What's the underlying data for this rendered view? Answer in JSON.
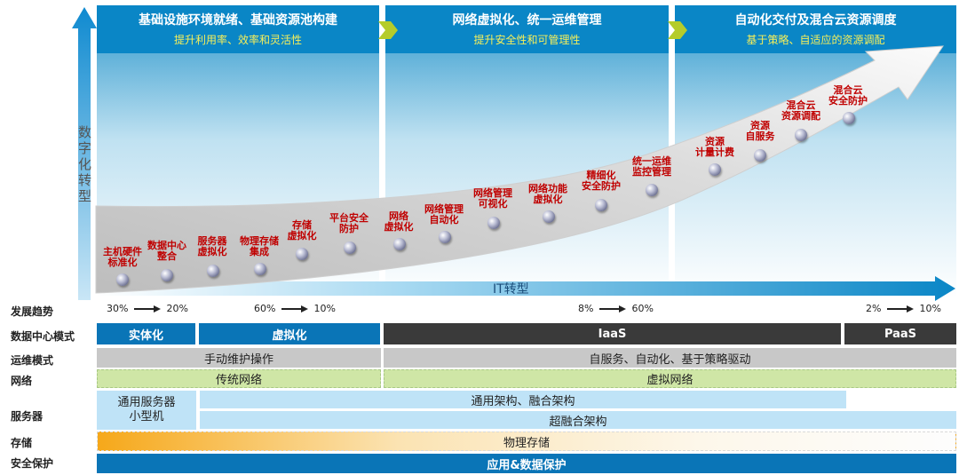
{
  "phases": [
    {
      "title": "基础设施环境就绪、基础资源池构建",
      "subtitle": "提升利用率、效率和灵活性"
    },
    {
      "title": "网络虚拟化、统一运维管理",
      "subtitle": "提升安全性和可管理性"
    },
    {
      "title": "自动化交付及混合云资源调度",
      "subtitle": "基于策略、自适应的资源调配"
    }
  ],
  "y_axis_label": [
    "数",
    "字",
    "化",
    "转",
    "型"
  ],
  "x_axis_label": "IT转型",
  "milestones": [
    "主机硬件\n标准化",
    "数据中心\n整合",
    "服务器\n虚拟化",
    "物理存储\n集成",
    "存储\n虚拟化",
    "平台安全\n防护",
    "网络\n虚拟化",
    "网络管理\n自动化",
    "网络管理\n可视化",
    "网络功能\n虚拟化",
    "精细化\n安全防护",
    "统一运维\n监控管理",
    "资源\n计量计费",
    "资源\n自服务",
    "混合云\n资源调配",
    "混合云\n安全防护"
  ],
  "row_labels": {
    "trend": "发展趋势",
    "dc_mode": "数据中心模式",
    "ops": "运维模式",
    "network": "网络",
    "server": "服务器",
    "storage": "存储",
    "security": "安全保护"
  },
  "trends": [
    {
      "from": "30%",
      "to": "20%"
    },
    {
      "from": "60%",
      "to": "10%"
    },
    {
      "from": "8%",
      "to": "60%"
    },
    {
      "from": "2%",
      "to": "10%"
    }
  ],
  "dc_modes": [
    "实体化",
    "虚拟化",
    "IaaS",
    "PaaS"
  ],
  "ops_modes": [
    "手动维护操作",
    "自服务、自动化、基于策略驱动"
  ],
  "network_modes": [
    "传统网络",
    "虚拟网络"
  ],
  "server_modes": {
    "left": "通用服务器\n小型机",
    "top": "通用架构、融合架构",
    "bottom": "超融合架构"
  },
  "storage_mode": "物理存储",
  "security_mode": "应用&数据保护",
  "colors": {
    "phase_header": "#0a86c6",
    "subtitle": "#f6ef5a",
    "milestone_text": "#c00000",
    "iaas": "#3a3a3a",
    "dc_blue": "#0a75b7"
  }
}
